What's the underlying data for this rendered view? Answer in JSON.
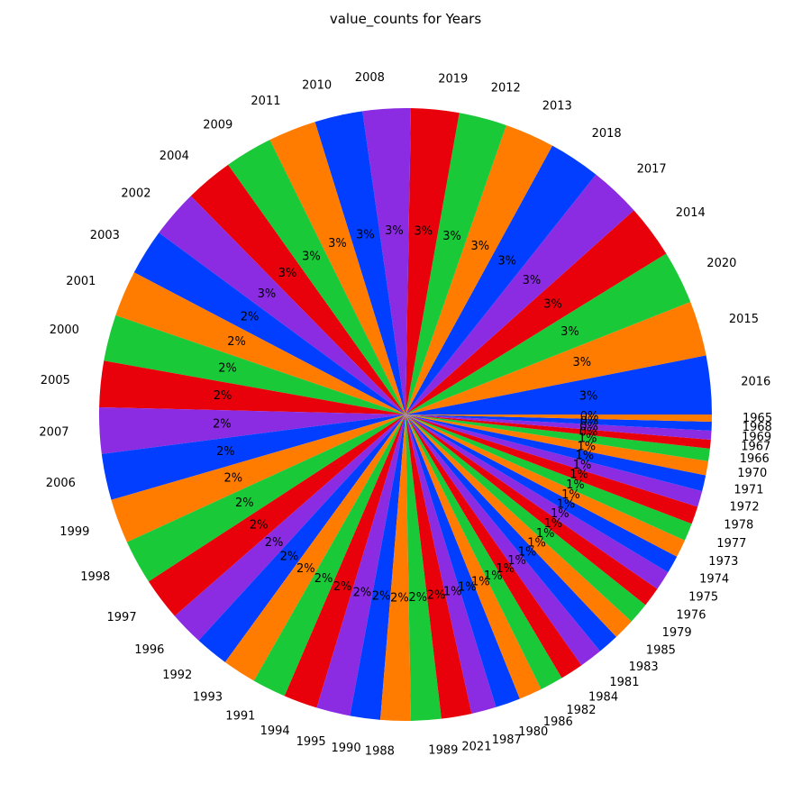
{
  "chart_data": {
    "type": "pie",
    "title": "value_counts for Years",
    "start_angle_deg": 0,
    "direction": "counterclockwise",
    "percent_format": "integer",
    "colors": [
      "#023eff",
      "#ff7c00",
      "#1ac938",
      "#e8000b",
      "#8b2be2"
    ],
    "categories": [
      "2016",
      "2015",
      "2020",
      "2014",
      "2017",
      "2018",
      "2013",
      "2012",
      "2019",
      "2008",
      "2010",
      "2011",
      "2009",
      "2004",
      "2002",
      "2003",
      "2001",
      "2000",
      "2005",
      "2007",
      "2006",
      "1999",
      "1998",
      "1997",
      "1996",
      "1992",
      "1993",
      "1991",
      "1994",
      "1995",
      "1990",
      "1988",
      "1989",
      "2021",
      "1987",
      "1980",
      "1986",
      "1982",
      "1984",
      "1981",
      "1983",
      "1985",
      "1979",
      "1976",
      "1975",
      "1974",
      "1973",
      "1977",
      "1978",
      "1972",
      "1971",
      "1970",
      "1966",
      "1967",
      "1969",
      "1968",
      "1965"
    ],
    "values": [
      33,
      31,
      30,
      30,
      29,
      29,
      28,
      27,
      27,
      27,
      27,
      27,
      27,
      27,
      27,
      26,
      26,
      26,
      26,
      26,
      26,
      25,
      25,
      24,
      19,
      19,
      19,
      19,
      19,
      19,
      17,
      17,
      17,
      17,
      14,
      14,
      13,
      13,
      13,
      13,
      12,
      12,
      12,
      11,
      11,
      10,
      10,
      10,
      10,
      9,
      9,
      8,
      7,
      5,
      5,
      5,
      4
    ]
  }
}
